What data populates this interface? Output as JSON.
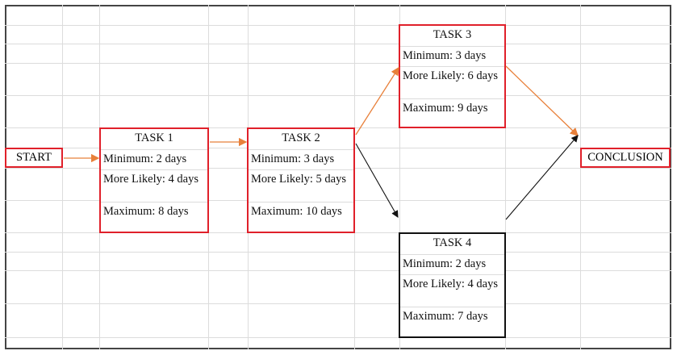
{
  "start": {
    "label": "START"
  },
  "conclusion": {
    "label": "CONCLUSION"
  },
  "tasks": [
    {
      "title": "TASK 1",
      "minimum": "Minimum: 2 days",
      "likely": "More Likely: 4 days",
      "maximum": "Maximum: 8 days",
      "border_color": "#e0202a"
    },
    {
      "title": "TASK 2",
      "minimum": "Minimum: 3 days",
      "likely": "More Likely: 5 days",
      "maximum": "Maximum: 10 days",
      "border_color": "#e0202a"
    },
    {
      "title": "TASK 3",
      "minimum": "Minimum: 3 days",
      "likely": "More Likely: 6 days",
      "maximum": "Maximum: 9 days",
      "border_color": "#e0202a"
    },
    {
      "title": "TASK 4",
      "minimum": "Minimum: 2 days",
      "likely": "More Likely: 4 days",
      "maximum": "Maximum: 7 days",
      "border_color": "#111111"
    }
  ],
  "edges": [
    {
      "from": "START",
      "to": "TASK 1",
      "color": "#e8803a"
    },
    {
      "from": "TASK 1",
      "to": "TASK 2",
      "color": "#e8803a"
    },
    {
      "from": "TASK 2",
      "to": "TASK 3",
      "color": "#e8803a"
    },
    {
      "from": "TASK 3",
      "to": "CONCLUSION",
      "color": "#e8803a"
    },
    {
      "from": "TASK 2",
      "to": "TASK 4",
      "color": "#111111"
    },
    {
      "from": "TASK 4",
      "to": "CONCLUSION",
      "color": "#111111"
    }
  ]
}
